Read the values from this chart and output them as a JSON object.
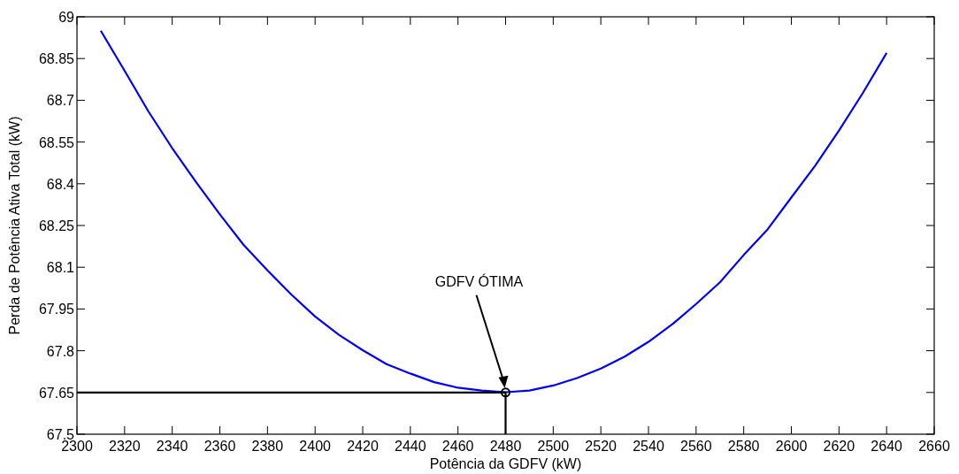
{
  "chart_data": {
    "type": "line",
    "xlabel": "Potência da GDFV (kW)",
    "ylabel": "Perda de Potência Ativa Total (kW)",
    "xlim": [
      2300,
      2660
    ],
    "ylim": [
      67.5,
      69
    ],
    "xticks": [
      2300,
      2320,
      2340,
      2360,
      2380,
      2400,
      2420,
      2440,
      2460,
      2480,
      2500,
      2520,
      2540,
      2560,
      2580,
      2600,
      2620,
      2640,
      2660
    ],
    "yticks": [
      67.5,
      67.65,
      67.8,
      67.95,
      68.1,
      68.25,
      68.4,
      68.55,
      68.7,
      68.85,
      69
    ],
    "grid": false,
    "annotations": [
      "GDFV ÓTIMA"
    ],
    "series": [
      {
        "color": "#0000ff",
        "x": [
          2310,
          2320,
          2330,
          2340,
          2350,
          2360,
          2370,
          2380,
          2390,
          2400,
          2410,
          2420,
          2430,
          2440,
          2450,
          2460,
          2470,
          2480,
          2490,
          2500,
          2510,
          2520,
          2530,
          2540,
          2550,
          2560,
          2570,
          2580,
          2590,
          2600,
          2610,
          2620,
          2630,
          2640
        ],
        "values": [
          68.95,
          68.806,
          68.66,
          68.528,
          68.406,
          68.29,
          68.18,
          68.089,
          68.002,
          67.923,
          67.857,
          67.802,
          67.752,
          67.718,
          67.687,
          67.667,
          67.657,
          67.651,
          67.657,
          67.675,
          67.702,
          67.736,
          67.779,
          67.832,
          67.895,
          67.968,
          68.046,
          68.144,
          68.236,
          68.351,
          68.465,
          68.591,
          68.726,
          68.87
        ]
      },
      {
        "color": "#000000",
        "x": [
          2300,
          2480,
          2480
        ],
        "values": [
          67.65,
          67.65,
          67.5
        ]
      },
      {
        "type": "scatter",
        "color": "#000000",
        "marker": "circle",
        "x": [
          2480
        ],
        "values": [
          67.65
        ]
      }
    ]
  }
}
